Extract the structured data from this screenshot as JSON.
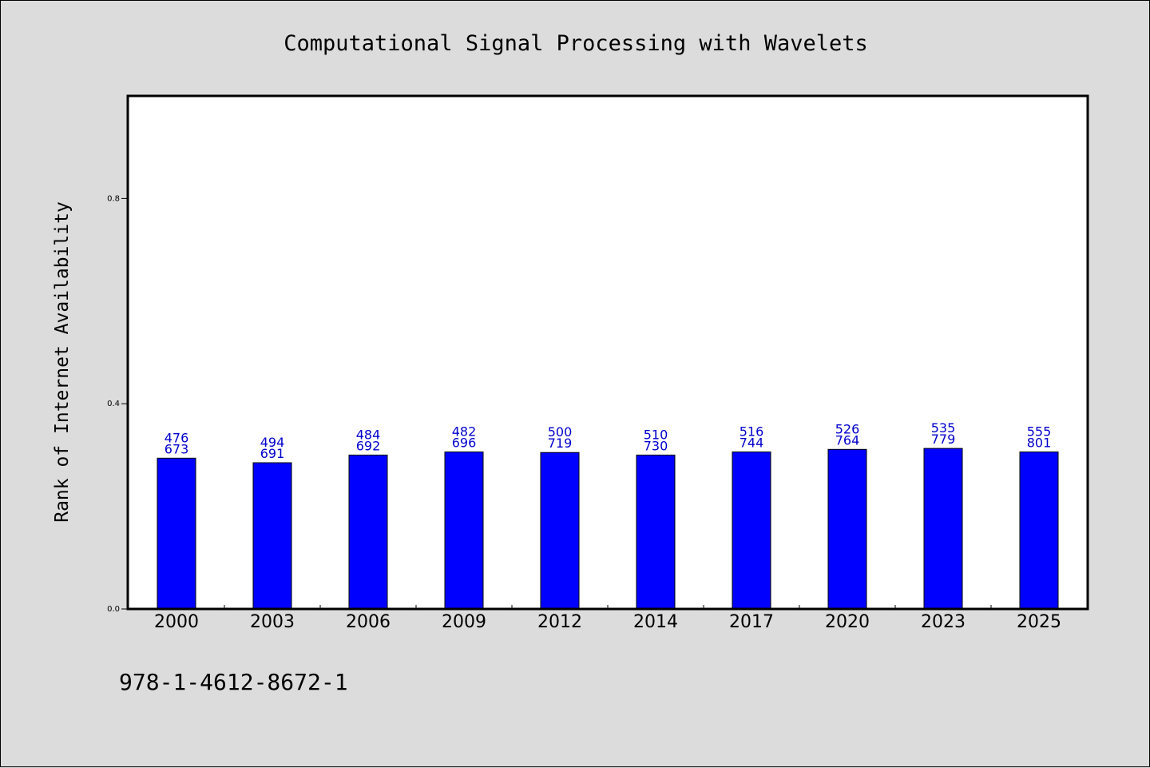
{
  "chart_data": {
    "type": "bar",
    "title": "Computational Signal Processing with Wavelets",
    "ylabel": "Rank of Internet Availability",
    "xlabel": "",
    "ylim": [
      0,
      1.0
    ],
    "yticks": [
      "0.0",
      "0.4",
      "0.8"
    ],
    "ytick_values": [
      0.0,
      0.4,
      0.8
    ],
    "categories": [
      "2000",
      "2003",
      "2006",
      "2009",
      "2012",
      "2014",
      "2017",
      "2020",
      "2023",
      "2025"
    ],
    "values": [
      0.294,
      0.285,
      0.3,
      0.306,
      0.305,
      0.3,
      0.306,
      0.311,
      0.313,
      0.306
    ],
    "label_top": [
      "476",
      "494",
      "484",
      "482",
      "500",
      "510",
      "516",
      "526",
      "535",
      "555"
    ],
    "label_bottom": [
      "673",
      "691",
      "692",
      "696",
      "719",
      "730",
      "744",
      "764",
      "779",
      "801"
    ],
    "grid": false,
    "colors": {
      "bar": "#0000ff",
      "label": "#0000cc",
      "background": "#dcdcdc",
      "plot_background": "#ffffff"
    }
  },
  "footer": "978-1-4612-8672-1"
}
